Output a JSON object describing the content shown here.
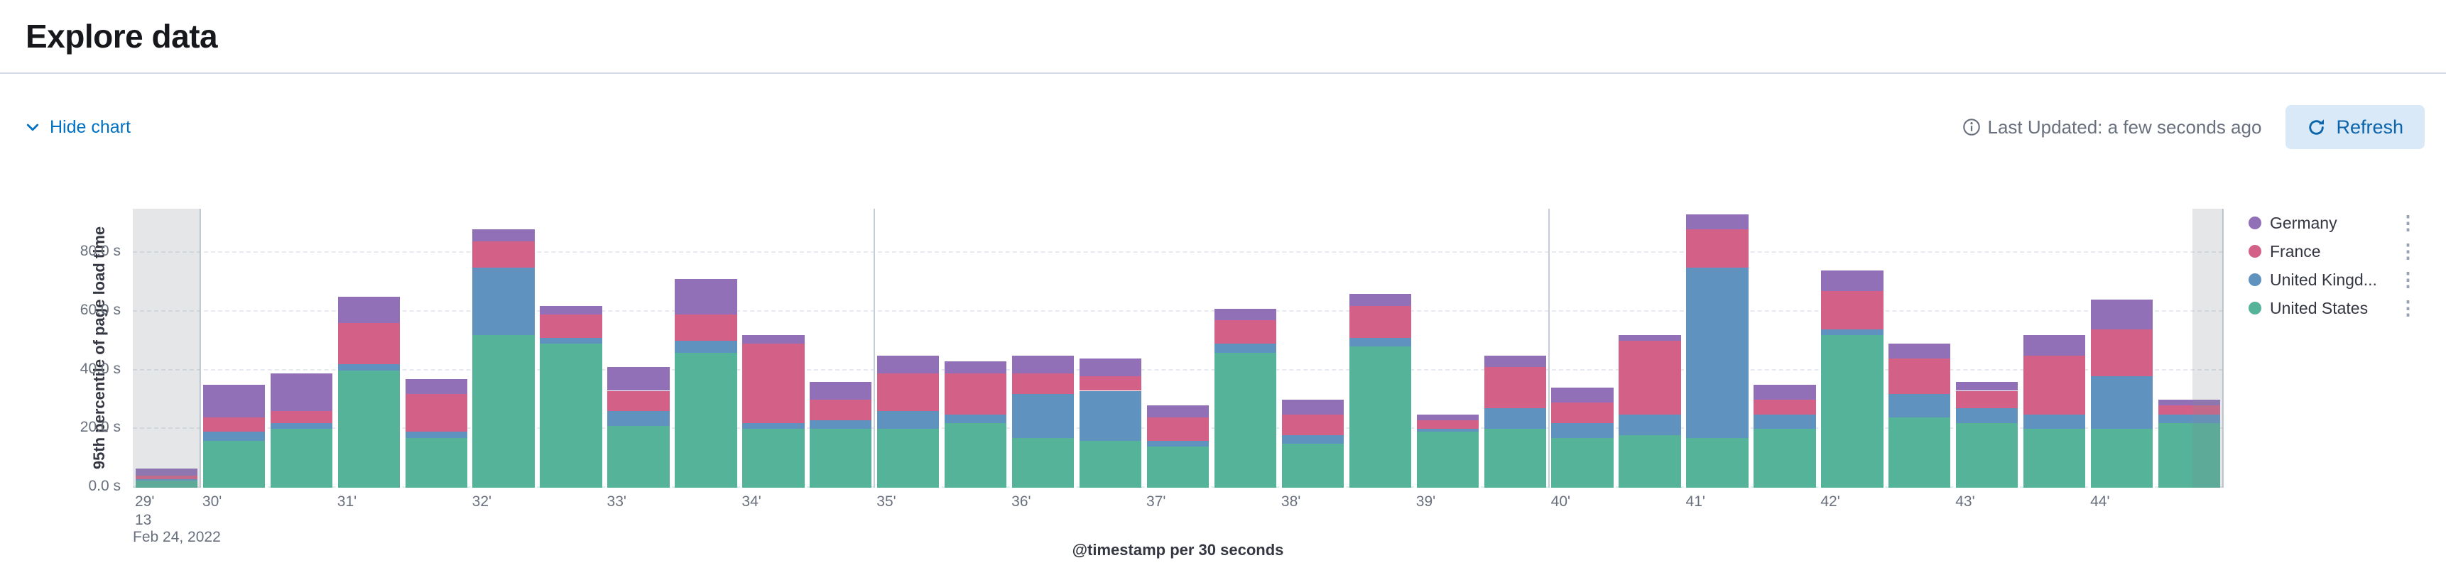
{
  "page": {
    "title": "Explore data"
  },
  "toolbar": {
    "hide_chart_label": "Hide chart",
    "last_updated": "Last Updated: a few seconds ago",
    "refresh_label": "Refresh"
  },
  "icons": {
    "hide_chart": "chevron-down",
    "last_updated": "info-circle",
    "refresh": "refresh-arrow",
    "legend_menu": "vertical-ellipsis",
    "legend_menu_glyph": "⋮"
  },
  "legend": {
    "position": "top-right",
    "items": [
      {
        "label": "Germany",
        "color": "#9170B8"
      },
      {
        "label": "France",
        "color": "#D36086"
      },
      {
        "label": "United Kingd...",
        "color": "#6092C0"
      },
      {
        "label": "United States",
        "color": "#54B399"
      }
    ]
  },
  "chart_data": {
    "type": "bar",
    "stacked": true,
    "title": "",
    "xlabel": "@timestamp per 30 seconds",
    "ylabel": "95th percentile of page load time",
    "unit": "s",
    "ylim": [
      0,
      95
    ],
    "y_ticks": [
      "0.0 s",
      "20.0 s",
      "40.0 s",
      "60.0 s",
      "80.0 s"
    ],
    "y_tick_values": [
      0,
      20,
      40,
      60,
      80
    ],
    "grid": "horizontal-dashed",
    "legend_position": "right",
    "hour_label": "13",
    "date_label": "Feb 24, 2022",
    "x_tick_labels": [
      "29'",
      "30'",
      "31'",
      "32'",
      "33'",
      "34'",
      "35'",
      "36'",
      "37'",
      "38'",
      "39'",
      "40'",
      "41'",
      "42'",
      "43'",
      "44'"
    ],
    "partial_buckets": {
      "first": true,
      "last": true
    },
    "categories": [
      "13:29:30",
      "13:30:00",
      "13:30:30",
      "13:31:00",
      "13:31:30",
      "13:32:00",
      "13:32:30",
      "13:33:00",
      "13:33:30",
      "13:34:00",
      "13:34:30",
      "13:35:00",
      "13:35:30",
      "13:36:00",
      "13:36:30",
      "13:37:00",
      "13:37:30",
      "13:38:00",
      "13:38:30",
      "13:39:00",
      "13:39:30",
      "13:40:00",
      "13:40:30",
      "13:41:00",
      "13:41:30",
      "13:42:00",
      "13:42:30",
      "13:43:00",
      "13:43:30",
      "13:44:00",
      "13:44:30"
    ],
    "stack_order": "bottom_to_top",
    "series": [
      {
        "name": "United States",
        "color": "#54B399",
        "values": [
          2.5,
          16,
          20,
          40,
          17,
          52,
          49,
          21,
          46,
          20,
          20,
          20,
          22,
          17,
          16,
          14,
          46,
          15,
          48,
          19,
          20,
          17,
          18,
          17,
          20,
          52,
          24,
          22,
          20,
          20,
          22
        ]
      },
      {
        "name": "United Kingdom",
        "color": "#6092C0",
        "values": [
          0.5,
          3,
          2,
          2,
          2,
          23,
          2,
          5,
          4,
          2,
          3,
          6,
          3,
          15,
          17,
          2,
          3,
          3,
          3,
          1,
          7,
          5,
          7,
          58,
          5,
          2,
          8,
          5,
          5,
          18,
          3
        ]
      },
      {
        "name": "France",
        "color": "#D36086",
        "values": [
          1,
          5,
          4,
          14,
          13,
          9,
          8,
          7,
          9,
          27,
          7,
          13,
          14,
          7,
          5,
          8,
          8,
          7,
          11,
          3,
          14,
          7,
          25,
          13,
          5,
          13,
          12,
          6,
          20,
          16,
          3
        ]
      },
      {
        "name": "Germany",
        "color": "#9170B8",
        "values": [
          2.5,
          11,
          13,
          9,
          5,
          4,
          3,
          8,
          12,
          3,
          6,
          6,
          4,
          6,
          6,
          4,
          4,
          5,
          4,
          2,
          4,
          5,
          2,
          5,
          5,
          7,
          5,
          3,
          7,
          10,
          2
        ]
      }
    ]
  }
}
